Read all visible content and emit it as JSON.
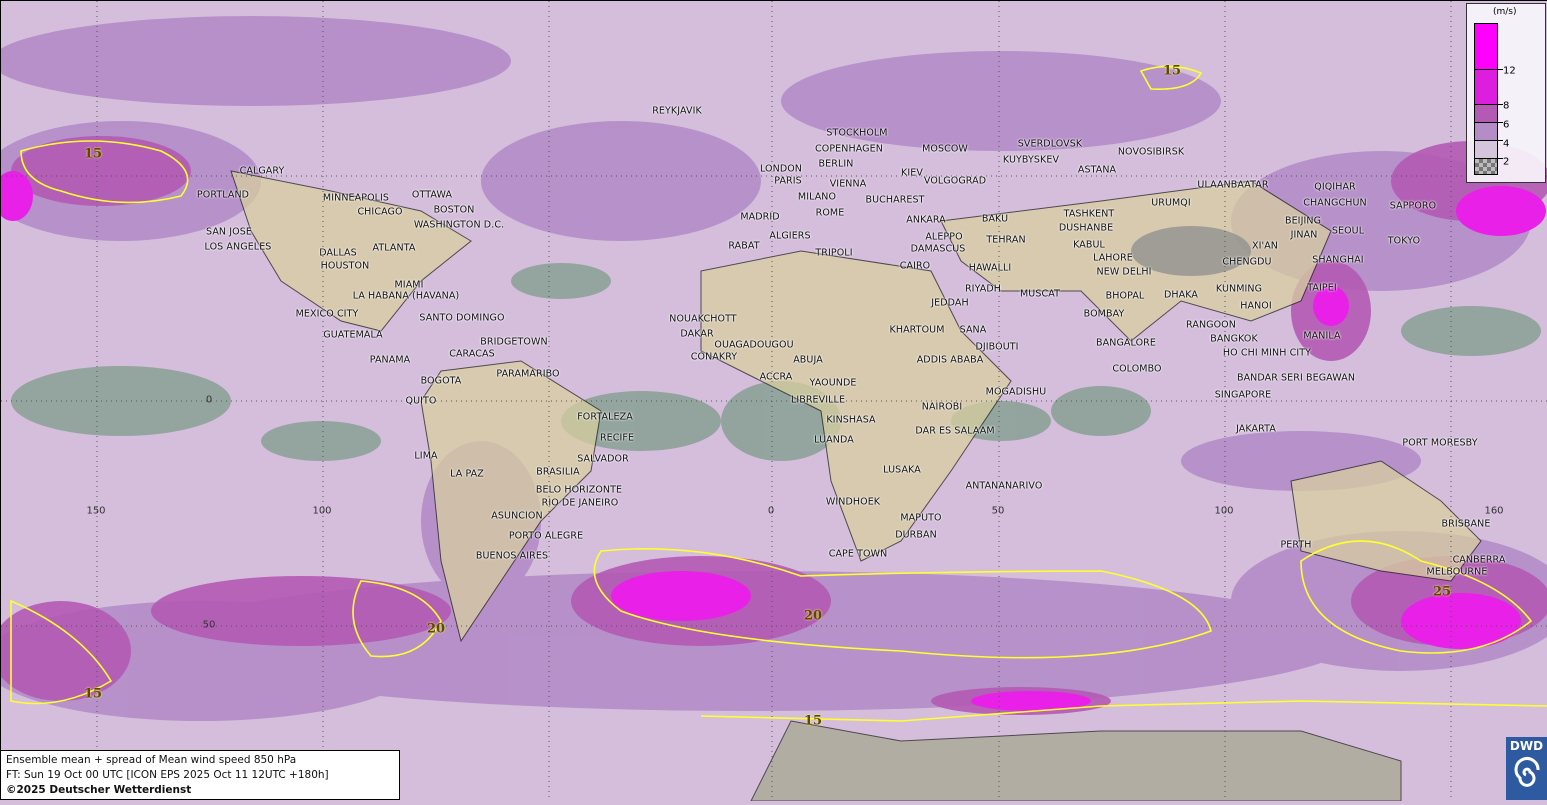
{
  "title_line": "Ensemble mean + spread of Mean wind speed 850 hPa",
  "forecast_line": "FT: Sun 19 Oct 00 UTC [ICON EPS 2025 Oct 11 12UTC +180h]",
  "copyright": "©2025 Deutscher Wetterdienst",
  "logo_text": "DWD",
  "legend": {
    "unit": "(m/s)",
    "ticks": [
      "12",
      "8",
      "6",
      "4",
      "2"
    ],
    "colors": [
      "#ff00ff",
      "#de1ede",
      "#b45ab4",
      "#b48cc8",
      "#d4c4dc",
      "#9a9a9a"
    ]
  },
  "contour_color": "#ffff30",
  "contour_labels": [
    "15",
    "15",
    "20",
    "20",
    "25",
    "15",
    "15"
  ],
  "axis_labels": {
    "lon": [
      "150",
      "100",
      "0",
      "50",
      "100",
      "160"
    ],
    "lat": [
      "0",
      "50"
    ]
  },
  "cities": [
    "REYKJAVIK",
    "STOCKHOLM",
    "COPENHAGEN",
    "BERLIN",
    "MOSCOW",
    "SVERDLOVSK",
    "NOVOSIBIRSK",
    "KUYBYSKEV",
    "LONDON",
    "PARIS",
    "VIENNA",
    "KIEV",
    "VOLGOGRAD",
    "ASTANA",
    "ULAANBAATAR",
    "QIQIHAR",
    "CALGARY",
    "PORTLAND",
    "MINNEAPOLIS",
    "OTTAWA",
    "CHICAGO",
    "BOSTON",
    "WASHINGTON D.C.",
    "MILANO",
    "BUCHAREST",
    "MADRID",
    "ROME",
    "ANKARA",
    "BAKU",
    "TASHKENT",
    "URUMQI",
    "CHANGCHUN",
    "SAPPORO",
    "SAN JOSE",
    "LOS ANGELES",
    "ATLANTA",
    "DALLAS",
    "HOUSTON",
    "ALGIERS",
    "ALEPPO",
    "TEHRAN",
    "DUSHANBE",
    "KABUL",
    "BEIJING",
    "JINAN",
    "SEOUL",
    "TOKYO",
    "RABAT",
    "TRIPOLI",
    "DAMASCUS",
    "XI'AN",
    "NEW DELHI",
    "LAHORE",
    "CHENGDU",
    "SHANGHAI",
    "CAIRO",
    "HAWALLI",
    "MIAMI",
    "LA HABANA (HAVANA)",
    "RIYADH",
    "MUSCAT",
    "KUNMING",
    "TAIPEI",
    "DHAKA",
    "BHOPAL",
    "HANOI",
    "MEXICO CITY",
    "SANTO DOMINGO",
    "JEDDAH",
    "BOMBAY",
    "NOUAKCHOTT",
    "KHARTOUM",
    "SANA",
    "RANGOON",
    "BRIDGETOWN",
    "DAKAR",
    "OUAGADOUGOU",
    "ABUJA",
    "DJIBOUTI",
    "ADDIS ABABA",
    "BANGKOK",
    "MANILA",
    "GUATEMALA",
    "BANGALORE",
    "PANAMA",
    "CARACAS",
    "CONAKRY",
    "HO CHI MINH CITY",
    "BOGOTA",
    "PARAMARIBO",
    "ACCRA",
    "YAOUNDE",
    "COLOMBO",
    "MOGADISHU",
    "BANDAR SERI BEGAWAN",
    "SINGAPORE",
    "QUITO",
    "LIBREVILLE",
    "NAIROBI",
    "FORTALEZA",
    "KINSHASA",
    "RECIFE",
    "DAR ES SALAAM",
    "JAKARTA",
    "PORT MORESBY",
    "LUANDA",
    "LIMA",
    "LA PAZ",
    "SALVADOR",
    "BRASILIA",
    "LUSAKA",
    "ANTANANARIVO",
    "BELO HORIZONTE",
    "RIO DE JANEIRO",
    "WINDHOEK",
    "ASUNCION",
    "MAPUTO",
    "BRISBANE",
    "DURBAN",
    "PORTO ALEGRE",
    "BUENOS AIRES",
    "CAPE TOWN",
    "PERTH",
    "CANBERRA",
    "MELBOURNE"
  ]
}
